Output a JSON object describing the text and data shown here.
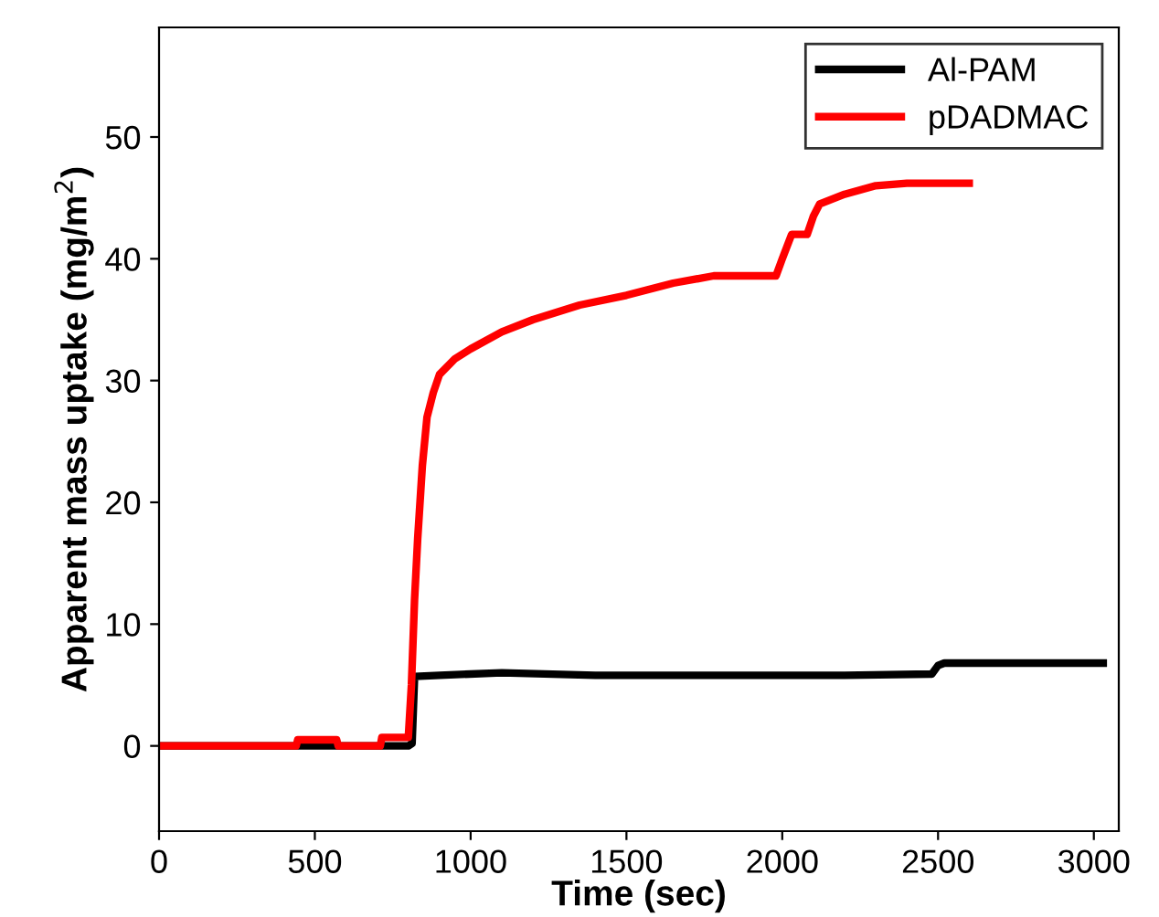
{
  "chart_data": {
    "type": "line",
    "xlabel": "Time (sec)",
    "ylabel": "Apparent mass uptake (mg/m$^{2}$)",
    "xlim": [
      0,
      3080
    ],
    "ylim": [
      -7,
      59
    ],
    "xticks": [
      0,
      500,
      1000,
      1500,
      2000,
      2500,
      3000
    ],
    "yticks": [
      0,
      10,
      20,
      30,
      40,
      50
    ],
    "grid": false,
    "legend": "top right",
    "marker": "none",
    "line_style": "solid",
    "series": [
      {
        "name": "Al-PAM",
        "color": "#000000",
        "x": [
          0,
          400,
          600,
          800,
          812,
          820,
          900,
          1100,
          1400,
          1800,
          2200,
          2480,
          2500,
          2520,
          2800,
          3030
        ],
        "values": [
          0,
          0,
          0,
          0,
          0.2,
          5.7,
          5.8,
          6,
          5.8,
          5.8,
          5.8,
          5.9,
          6.6,
          6.8,
          6.8,
          6.8
        ]
      },
      {
        "name": "pDADMAC",
        "color": "#ff0000",
        "x": [
          0,
          440,
          445,
          570,
          575,
          710,
          715,
          800,
          810,
          820,
          830,
          845,
          860,
          880,
          900,
          950,
          1000,
          1100,
          1200,
          1350,
          1500,
          1650,
          1780,
          1980,
          2000,
          2030,
          2080,
          2100,
          2120,
          2200,
          2300,
          2400,
          2600
        ],
        "values": [
          0,
          0,
          0.5,
          0.5,
          0,
          0,
          0.7,
          0.7,
          5,
          12,
          17,
          23,
          27,
          29,
          30.5,
          31.8,
          32.6,
          34,
          35,
          36.2,
          37,
          38,
          38.6,
          38.6,
          40,
          42,
          42,
          43.5,
          44.5,
          45.3,
          46,
          46.2,
          46.2
        ]
      }
    ]
  }
}
